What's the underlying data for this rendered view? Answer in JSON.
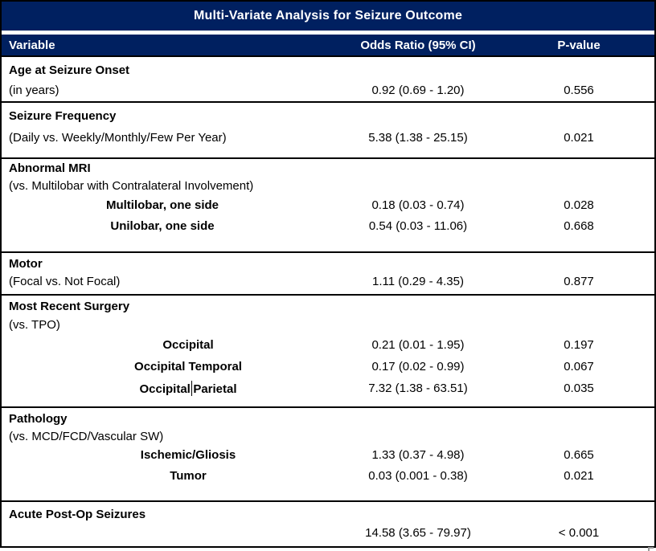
{
  "title": "Multi-Variate Analysis for Seizure Outcome",
  "columns": {
    "variable": "Variable",
    "odds_ratio": "Odds Ratio (95% CI)",
    "p_value": "P-value"
  },
  "colors": {
    "header_navy": "#002060",
    "border_black": "#000000",
    "header_text_white": "#FFFFFF",
    "body_text_black": "#000000"
  },
  "sections": {
    "age": {
      "name": "Age at Seizure Onset",
      "note": "(in years)",
      "or": "0.92 (0.69 - 1.20)",
      "p": "0.556"
    },
    "frequency": {
      "name": "Seizure Frequency",
      "note": "(Daily vs. Weekly/Monthly/Few Per Year)",
      "or": "5.38 (1.38 - 25.15)",
      "p": "0.021"
    },
    "mri": {
      "name": "Abnormal MRI",
      "note": "(vs. Multilobar with Contralateral Involvement)",
      "multilobar": {
        "label": "Multilobar, one side",
        "or": "0.18 (0.03 - 0.74)",
        "p": "0.028"
      },
      "unilobar": {
        "label": "Unilobar, one side",
        "or": "0.54 (0.03 - 11.06)",
        "p": "0.668"
      }
    },
    "motor": {
      "name": "Motor",
      "note": "(Focal vs. Not Focal)",
      "or": "1.11 (0.29 - 4.35)",
      "p": "0.877"
    },
    "surgery": {
      "name": "Most Recent Surgery",
      "note": "(vs. TPO)",
      "occipital": {
        "label": "Occipital",
        "or": "0.21 (0.01 - 1.95)",
        "p": "0.197"
      },
      "occipital_temporal": {
        "label": "Occipital Temporal",
        "or": "0.17 (0.02 - 0.99)",
        "p": "0.067"
      },
      "occipital_parietal": {
        "label_before_cursor": "Occipital",
        "label_after_cursor": "Parietal",
        "or": "7.32 (1.38 - 63.51)",
        "p": "0.035"
      }
    },
    "pathology": {
      "name": "Pathology",
      "note": "(vs. MCD/FCD/Vascular SW)",
      "ischemic_gliosis": {
        "label": "Ischemic/Gliosis",
        "or": "1.33 (0.37 - 4.98)",
        "p": "0.665"
      },
      "tumor": {
        "label": "Tumor",
        "or": "0.03 (0.001 - 0.38)",
        "p": "0.021"
      }
    },
    "acute_postop": {
      "name": "Acute Post-Op Seizures",
      "or": "14.58 (3.65 - 79.97)",
      "p": "< 0.001"
    }
  }
}
